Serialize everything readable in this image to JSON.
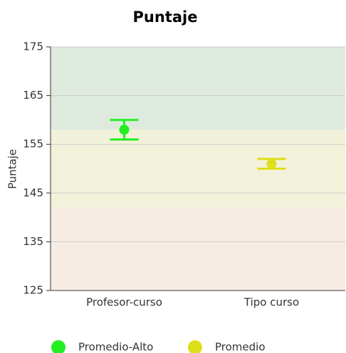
{
  "chart_data": {
    "type": "errorbar",
    "title": "Puntaje",
    "y_label": "Puntaje",
    "categories": [
      "Profesor-curso",
      "Tipo curso"
    ],
    "series": [
      {
        "name": "Promedio-Alto",
        "color": "#22ee22",
        "values": [
          158,
          null
        ],
        "errors": [
          2,
          null
        ]
      },
      {
        "name": "Promedio",
        "color": "#dede1a",
        "values": [
          null,
          151
        ],
        "errors": [
          null,
          1
        ]
      }
    ],
    "bands": [
      {
        "from": 125,
        "to": 142,
        "color": "#f6ece4"
      },
      {
        "from": 142,
        "to": 158,
        "color": "#f2f2da"
      },
      {
        "from": 158,
        "to": 175,
        "color": "#dfeade"
      }
    ],
    "ylim": [
      125,
      175
    ],
    "yticks": [
      125,
      135,
      145,
      155,
      165,
      175
    ],
    "grid": true,
    "legend": "bottom"
  }
}
